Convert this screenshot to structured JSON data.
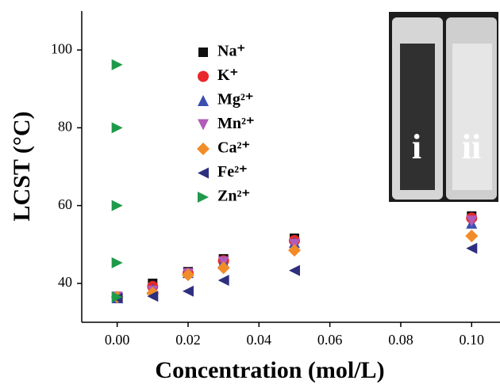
{
  "chart_data": {
    "type": "scatter",
    "x_label": "Concentration (mol/L)",
    "y_label": "LCST (°C)",
    "xlim": [
      -0.01,
      0.108
    ],
    "ylim": [
      30,
      110
    ],
    "xticks": [
      {
        "value": 0,
        "label": "0.00"
      },
      {
        "value": 0.02,
        "label": "0.02"
      },
      {
        "value": 0.04,
        "label": "0.04"
      },
      {
        "value": 0.06,
        "label": "0.06"
      },
      {
        "value": 0.08,
        "label": "0.08"
      },
      {
        "value": 0.1,
        "label": "0.10"
      }
    ],
    "yticks": [
      40,
      60,
      80,
      100
    ],
    "series": [
      {
        "name": "Na⁺",
        "color": "#111111",
        "marker": "square",
        "x": [
          0,
          0.01,
          0.02,
          0.03,
          0.05,
          0.1
        ],
        "values": [
          36.5,
          40,
          43,
          46.3,
          51.6,
          57.3
        ]
      },
      {
        "name": "K⁺",
        "color": "#e8282a",
        "marker": "circle",
        "x": [
          0,
          0.01,
          0.02,
          0.03,
          0.05,
          0.1
        ],
        "values": [
          36.5,
          39.2,
          42.6,
          45.8,
          51,
          56.8
        ]
      },
      {
        "name": "Mg²⁺",
        "color": "#3b4fb0",
        "marker": "triangle-up",
        "x": [
          0,
          0.01,
          0.02,
          0.03,
          0.05,
          0.1
        ],
        "values": [
          36.3,
          38.5,
          42.8,
          45.5,
          50.5,
          55.5
        ]
      },
      {
        "name": "Mn²⁺",
        "color": "#b05cb8",
        "marker": "triangle-down",
        "x": [
          0,
          0.01,
          0.02,
          0.03,
          0.05,
          0.1
        ],
        "values": [
          36.5,
          38,
          42.5,
          45.5,
          50,
          56
        ]
      },
      {
        "name": "Ca²⁺",
        "color": "#f28c28",
        "marker": "diamond",
        "x": [
          0,
          0.01,
          0.02,
          0.03,
          0.05,
          0.1
        ],
        "values": [
          36.5,
          37.5,
          42.2,
          44,
          48.5,
          52.2
        ]
      },
      {
        "name": "Fe²⁺",
        "color": "#2e2f7f",
        "marker": "triangle-left",
        "x": [
          0,
          0.01,
          0.02,
          0.03,
          0.05,
          0.1
        ],
        "values": [
          36.2,
          36.7,
          38,
          40.8,
          43.3,
          49
        ]
      },
      {
        "name": "Zn²⁺",
        "color": "#1f9a4a",
        "marker": "triangle-right",
        "x": [
          0,
          0,
          0,
          0,
          0
        ],
        "values": [
          96.2,
          80,
          60,
          45.3,
          36.5
        ]
      }
    ],
    "inset_labels": [
      "i",
      "ii"
    ]
  }
}
